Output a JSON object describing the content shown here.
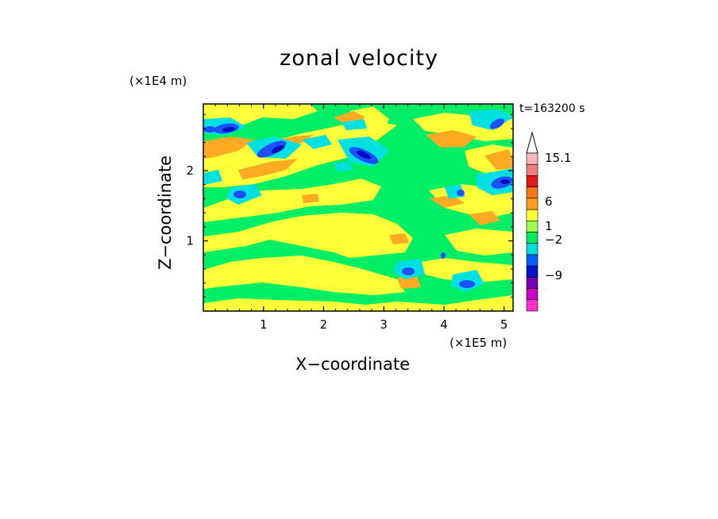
{
  "chart_data": {
    "type": "heatmap",
    "title": "zonal velocity",
    "xlabel": "X−coordinate",
    "ylabel": "Z−coordinate",
    "x_unit": "(×1E5 m)",
    "y_unit": "(×1E4 m)",
    "time_label": "t=163200 s",
    "x_ticks": [
      "1",
      "2",
      "3",
      "4",
      "5"
    ],
    "y_ticks": [
      "1",
      "2"
    ],
    "xlim": [
      0,
      5.15
    ],
    "ylim": [
      0,
      2.95
    ],
    "colorbar": {
      "labels": [
        "15.1",
        "6",
        "1",
        "−2",
        "−9"
      ],
      "colors": [
        "#f4b6b6",
        "#f07e7e",
        "#e01818",
        "#f07814",
        "#ffa020",
        "#ffff38",
        "#a0ff50",
        "#00ec60",
        "#00dcdc",
        "#0060ff",
        "#0014c8",
        "#7800b4",
        "#c800c8",
        "#ff30c8"
      ]
    }
  },
  "colors": {
    "bg_green": "#00ee66",
    "yellow": "#ffff3a",
    "orange": "#ffaa22",
    "cyan": "#00e0e0",
    "blue": "#1e50ff",
    "navy": "#0010c0"
  }
}
